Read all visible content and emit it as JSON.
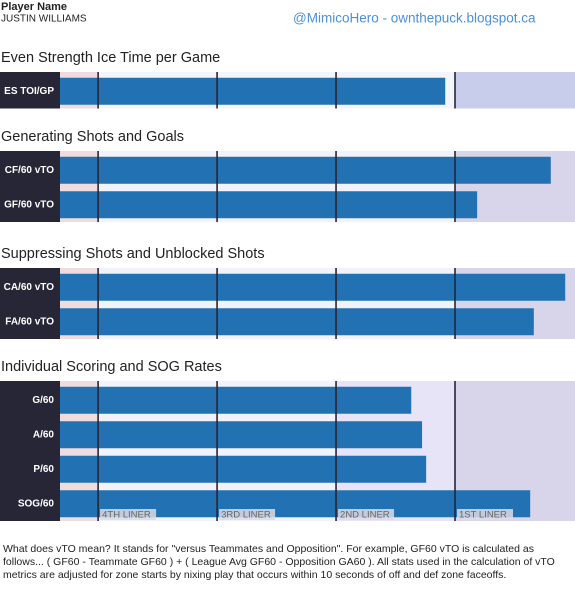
{
  "header": {
    "label": "Player Name",
    "player": "JUSTIN WILLIAMS",
    "credit": "@MimicoHero - ownthepuck.blogspot.ca"
  },
  "tiers": {
    "values": [
      7.4,
      30.5,
      53.6,
      76.7
    ],
    "labels": [
      "4TH LINER",
      "3RD LINER",
      "2ND LINER",
      "1ST LINER"
    ]
  },
  "chart_data": [
    {
      "type": "bar",
      "title": "Even Strength Ice Time per Game",
      "categories": [
        "ES TOI/GP"
      ],
      "values": [
        74.8
      ],
      "color": "#2271b3",
      "xlim": [
        0,
        100
      ]
    },
    {
      "type": "bar",
      "title": "Generating Shots and Goals",
      "categories": [
        "CF/60 vTO",
        "GF/60 vTO"
      ],
      "values": [
        95.3,
        81.0
      ],
      "color": "#2271b3",
      "xlim": [
        0,
        100
      ]
    },
    {
      "type": "bar",
      "title": "Suppressing Shots and Unblocked Shots",
      "categories": [
        "CA/60 vTO",
        "FA/60 vTO"
      ],
      "values": [
        98.1,
        92.0
      ],
      "color": "#2271b3",
      "xlim": [
        0,
        100
      ]
    },
    {
      "type": "bar",
      "title": "Individual Scoring and SOG Rates",
      "categories": [
        "G/60",
        "A/60",
        "P/60",
        "SOG/60"
      ],
      "values": [
        68.2,
        70.3,
        71.1,
        91.3
      ],
      "color": "#2271b3",
      "xlim": [
        0,
        100
      ]
    }
  ],
  "footnote": "What does vTO mean? It stands for \"versus Teammates and Opposition\". For example, GF60 vTO is calculated as follows... ( GF60 - Teammate GF60 ) + ( League Avg GF60 - Opposition GA60 ). All stats used in the calculation of vTO metrics are adjusted for zone starts by nixing play that occurs within 10 seconds of off and def zone faceoffs."
}
